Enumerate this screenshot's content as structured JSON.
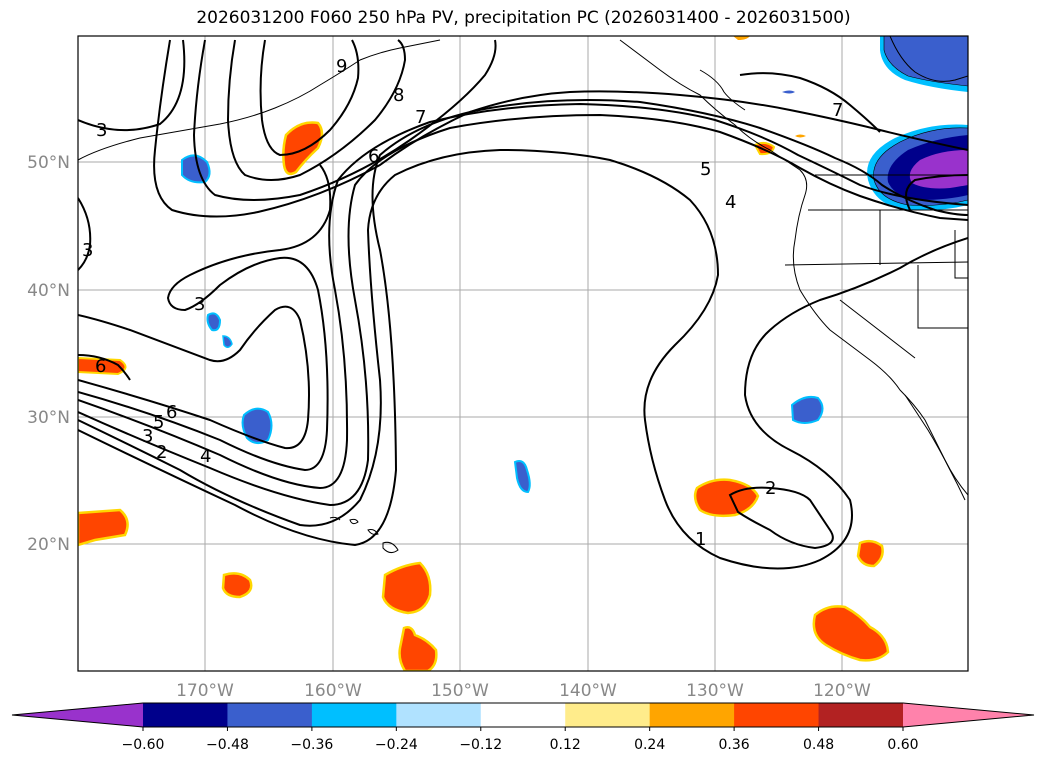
{
  "title": "2026031200 F060 250 hPa PV, precipitation PC (2026031400 - 2026031500)",
  "map": {
    "lon_labels": [
      "170°W",
      "160°W",
      "150°W",
      "140°W",
      "130°W",
      "120°W"
    ],
    "lat_labels": [
      "50°N",
      "40°N",
      "30°N",
      "20°N"
    ],
    "contour_levels": [
      "1",
      "2",
      "3",
      "4",
      "5",
      "6",
      "7",
      "8",
      "9"
    ]
  },
  "contour_labels": [
    {
      "id": "9",
      "text": "9"
    },
    {
      "id": "8",
      "text": "8"
    },
    {
      "id": "7a",
      "text": "7"
    },
    {
      "id": "6a",
      "text": "6"
    },
    {
      "id": "3a",
      "text": "3"
    },
    {
      "id": "3b",
      "text": "3"
    },
    {
      "id": "3c",
      "text": "3"
    },
    {
      "id": "6b",
      "text": "6"
    },
    {
      "id": "6c",
      "text": "6"
    },
    {
      "id": "5a",
      "text": "5"
    },
    {
      "id": "3d",
      "text": "3"
    },
    {
      "id": "2a",
      "text": "2"
    },
    {
      "id": "4a",
      "text": "4"
    },
    {
      "id": "5b",
      "text": "5"
    },
    {
      "id": "4b",
      "text": "4"
    },
    {
      "id": "7b",
      "text": "7"
    },
    {
      "id": "1",
      "text": "1"
    },
    {
      "id": "2b",
      "text": "2"
    }
  ],
  "colorbar": {
    "colors": [
      "#9932cc",
      "#00008b",
      "#3a5fcd",
      "#00bfff",
      "#b0e2ff",
      "#ffffff",
      "#ffec8b",
      "#ffa500",
      "#ff4500",
      "#b22222",
      "#ff82ab"
    ],
    "tick_labels": [
      "−0.60",
      "−0.48",
      "−0.36",
      "−0.24",
      "−0.12",
      "0.12",
      "0.24",
      "0.36",
      "0.48",
      "0.60"
    ]
  }
}
